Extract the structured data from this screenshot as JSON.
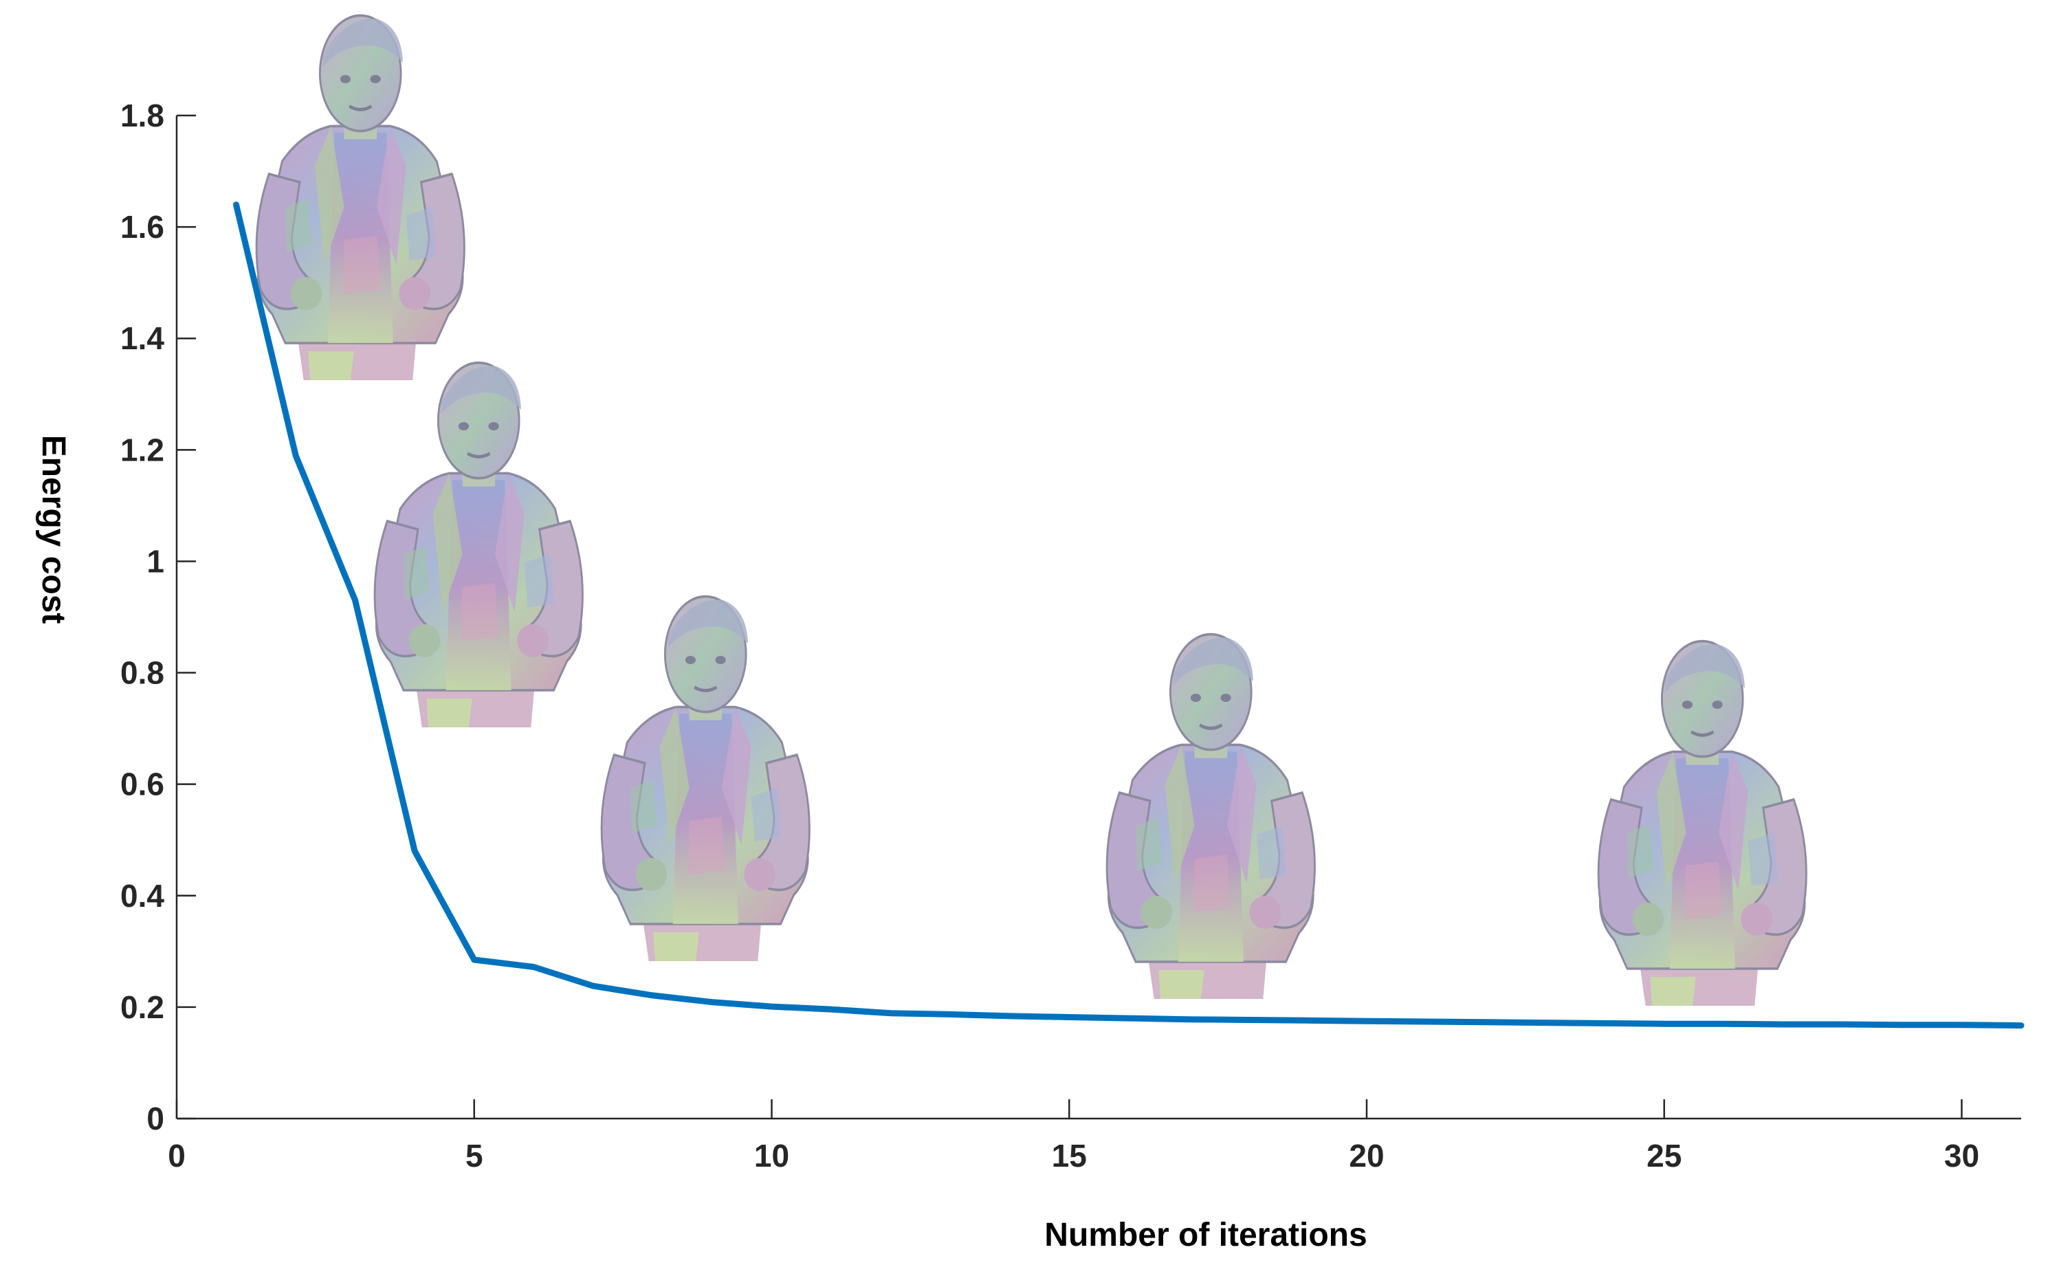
{
  "chart_data": {
    "type": "line",
    "title": "",
    "xlabel": "Number of iterations",
    "ylabel": "Energy cost",
    "xlim": [
      0,
      31
    ],
    "ylim": [
      0,
      1.8
    ],
    "x_ticks": [
      0,
      5,
      10,
      15,
      20,
      25,
      30
    ],
    "x_tick_labels": [
      "0",
      "5",
      "10",
      "15",
      "20",
      "25",
      "30"
    ],
    "y_ticks": [
      0,
      0.2,
      0.4,
      0.6,
      0.8,
      1,
      1.2,
      1.4,
      1.6,
      1.8
    ],
    "y_tick_labels": [
      "0",
      "0.2",
      "0.4",
      "0.6",
      "0.8",
      "1",
      "1.2",
      "1.4",
      "1.6",
      "1.8"
    ],
    "grid": false,
    "legend": "none",
    "series": [
      {
        "color": "#0072BD",
        "x": [
          1,
          2,
          3,
          4,
          5,
          6,
          7,
          8,
          9,
          10,
          11,
          12,
          13,
          14,
          15,
          16,
          17,
          18,
          19,
          20,
          21,
          22,
          23,
          24,
          25,
          26,
          27,
          28,
          29,
          30,
          31
        ],
        "values": [
          1.64,
          1.19,
          0.93,
          0.48,
          0.285,
          0.272,
          0.238,
          0.221,
          0.209,
          0.201,
          0.196,
          0.189,
          0.187,
          0.184,
          0.182,
          0.18,
          0.178,
          0.177,
          0.176,
          0.175,
          0.174,
          0.173,
          0.172,
          0.171,
          0.17,
          0.17,
          0.169,
          0.169,
          0.168,
          0.168,
          0.167
        ]
      }
    ],
    "annotations": [
      {
        "type": "image",
        "description": "3D reconstructed human mesh",
        "at_iteration": 1
      },
      {
        "type": "image",
        "description": "3D reconstructed human mesh",
        "at_iteration": 5
      },
      {
        "type": "image",
        "description": "3D reconstructed human mesh",
        "at_iteration": 9
      },
      {
        "type": "image",
        "description": "3D reconstructed human mesh",
        "at_iteration": 17
      },
      {
        "type": "image",
        "description": "3D reconstructed human mesh",
        "at_iteration": 25
      }
    ]
  }
}
